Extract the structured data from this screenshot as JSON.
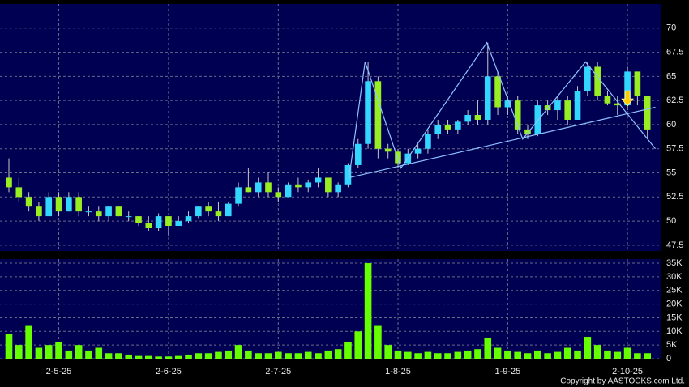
{
  "chart_data": [
    {
      "type": "candlestick",
      "up_color": "#33d6ff",
      "down_color": "#99ee22",
      "line_color": "#8fc4ff",
      "arrow_color": "#ffcc00",
      "open": [
        54.5,
        53.5,
        52.5,
        51.5,
        50.5,
        52.5,
        51,
        52.5,
        51,
        51,
        50.5,
        51.5,
        50.5,
        50.5,
        49.8,
        49.3,
        50.5,
        49.5,
        50,
        50.5,
        51.5,
        51,
        50.5,
        51.8,
        53.5,
        53,
        54,
        53,
        52.5,
        53.8,
        53.5,
        54,
        54.5,
        53,
        53.8,
        55.8,
        58,
        64.5,
        57.5,
        57.2,
        56,
        57,
        57.5,
        59,
        60,
        59.5,
        60.3,
        61,
        60.5,
        65,
        61.8,
        62.5,
        59.5,
        59,
        62,
        61.5,
        62.5,
        60.5,
        63.5,
        66,
        63,
        62.2,
        62,
        65.5,
        63
      ],
      "high": [
        56.5,
        54.5,
        53,
        52,
        53,
        53,
        53,
        53,
        51.5,
        51.5,
        51.5,
        51.5,
        51,
        50.5,
        50.5,
        50.8,
        50.5,
        50.5,
        51,
        51.5,
        52,
        52,
        52,
        54,
        55.5,
        54.5,
        55,
        53.5,
        54,
        54.5,
        54.3,
        55.5,
        54.5,
        54,
        56,
        58.5,
        66.5,
        65,
        58,
        57.5,
        57.5,
        58,
        59.5,
        60.5,
        60.5,
        60.5,
        61.5,
        62.5,
        68.5,
        65.5,
        63,
        63,
        60,
        62.5,
        62.5,
        63,
        63,
        64,
        66.5,
        66.5,
        63.5,
        63,
        66,
        65.5,
        63
      ],
      "low": [
        53,
        52,
        51,
        50,
        50.5,
        50.5,
        51,
        50.5,
        50.5,
        50,
        50,
        50.5,
        50,
        49.5,
        49,
        49,
        48.5,
        49.5,
        49.8,
        50.3,
        50.5,
        50,
        50.5,
        51.5,
        53,
        52.5,
        52.5,
        52,
        52.5,
        53,
        53,
        53.5,
        52.5,
        52.5,
        53.5,
        55.5,
        57.5,
        56.5,
        56.5,
        55.5,
        55.8,
        56.5,
        57,
        58.5,
        59,
        59,
        60,
        60,
        60,
        61,
        61,
        59,
        58.5,
        58.8,
        61,
        60.5,
        60,
        60.5,
        63,
        62.5,
        62,
        61,
        61.5,
        62,
        58.5
      ],
      "close": [
        53.5,
        52.5,
        51.5,
        50.5,
        52.5,
        51,
        52.5,
        51,
        51,
        50.5,
        51.5,
        50.5,
        50.5,
        49.8,
        49.3,
        50.5,
        49.5,
        50,
        50.5,
        51.5,
        51,
        50.5,
        51.8,
        53.5,
        53,
        54,
        53,
        52.5,
        53.8,
        53.5,
        54,
        54.5,
        53,
        53.8,
        55.8,
        58,
        64.5,
        57.5,
        57.2,
        56,
        57,
        57.5,
        59,
        60,
        59.5,
        60.3,
        61,
        60.5,
        65,
        61.8,
        62.5,
        59.5,
        59,
        62,
        61.5,
        62.5,
        60.5,
        63.5,
        66,
        63,
        62.2,
        62,
        65.5,
        63,
        59.5
      ],
      "lines": [
        {
          "x": [
            34.1,
            35.7,
            39.3,
            47.9,
            51.5,
            57.8,
            64.8
          ],
          "y": [
            54.5,
            66.5,
            55.5,
            68.5,
            58.5,
            66.5,
            57.5
          ]
        },
        {
          "x": [
            34.1,
            64.8
          ],
          "y": [
            54.5,
            61.8
          ]
        }
      ],
      "arrow": {
        "x": 62,
        "y": 62.5
      },
      "ylim": [
        46.9,
        72.5
      ],
      "yticks": [
        47.5,
        50,
        52.5,
        55,
        57.5,
        60,
        62.5,
        65,
        67.5,
        70
      ],
      "grid": true
    },
    {
      "type": "bar",
      "color": "#66ff00",
      "categories": [
        null,
        null,
        null,
        null,
        null,
        "2-5-25",
        null,
        null,
        null,
        null,
        null,
        null,
        null,
        null,
        null,
        null,
        "2-6-25",
        null,
        null,
        null,
        null,
        null,
        null,
        null,
        null,
        null,
        null,
        "2-7-25",
        null,
        null,
        null,
        null,
        null,
        null,
        null,
        null,
        null,
        null,
        null,
        "1-8-25",
        null,
        null,
        null,
        null,
        null,
        null,
        null,
        null,
        null,
        null,
        "1-9-25",
        null,
        null,
        null,
        null,
        null,
        null,
        null,
        null,
        null,
        null,
        null,
        "2-10-25",
        null,
        null
      ],
      "values": [
        9000,
        5000,
        12000,
        4000,
        5000,
        6000,
        3000,
        5000,
        3000,
        4000,
        2000,
        2000,
        1500,
        1000,
        1000,
        800,
        800,
        1000,
        1500,
        2000,
        2000,
        2500,
        3000,
        5000,
        3000,
        2000,
        2000,
        2500,
        2000,
        2000,
        2500,
        2000,
        3000,
        3500,
        6000,
        10000,
        35000,
        12000,
        5000,
        3000,
        2500,
        2000,
        2500,
        2000,
        2000,
        2500,
        3000,
        3500,
        7500,
        4000,
        3000,
        2500,
        2000,
        3000,
        2000,
        2500,
        4000,
        3000,
        8000,
        5000,
        3000,
        2500,
        4000,
        2000,
        2000
      ],
      "ylim": [
        0,
        36500
      ],
      "yticks": [
        0,
        {
          "value": 5000,
          "label": "5K"
        },
        {
          "value": 10000,
          "label": "10K"
        },
        {
          "value": 15000,
          "label": "15K"
        },
        {
          "value": 20000,
          "label": "20K"
        },
        {
          "value": 25000,
          "label": "25K"
        },
        {
          "value": 30000,
          "label": "30K"
        },
        {
          "value": 35000,
          "label": "35K"
        }
      ],
      "grid": true
    }
  ],
  "copyright": "Copyright by AASTOCKS.com Ltd."
}
